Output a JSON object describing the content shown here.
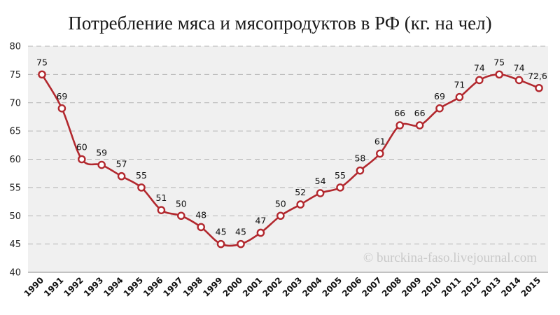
{
  "chart_data": {
    "type": "line",
    "title": "Потребление мяса и мясопродуктов в РФ (кг. на чел)",
    "xlabel": "",
    "ylabel": "",
    "ylim": [
      40,
      80
    ],
    "yticks": [
      "40",
      "45",
      "50",
      "55",
      "60",
      "65",
      "70",
      "75",
      "80"
    ],
    "grid": true,
    "categories": [
      "1990",
      "1991",
      "1992",
      "1993",
      "1994",
      "1995",
      "1996",
      "1997",
      "1998",
      "1999",
      "2000",
      "2001",
      "2002",
      "2003",
      "2004",
      "2005",
      "2006",
      "2007",
      "2008",
      "2009",
      "2010",
      "2011",
      "2012",
      "2013",
      "2014",
      "2015"
    ],
    "values": [
      75,
      69,
      60,
      59,
      57,
      55,
      51,
      50,
      48,
      45,
      45,
      47,
      50,
      52,
      54,
      55,
      58,
      61,
      66,
      66,
      69,
      71,
      74,
      75,
      74,
      72.6
    ],
    "data_labels": [
      "75",
      "69",
      "60",
      "59",
      "57",
      "55",
      "51",
      "50",
      "48",
      "45",
      "45",
      "47",
      "50",
      "52",
      "54",
      "55",
      "58",
      "61",
      "66",
      "66",
      "69",
      "71",
      "74",
      "75",
      "74",
      "72,6"
    ],
    "watermark": "© burckina-faso.livejournal.com",
    "colors": {
      "line": "#b2282e",
      "marker_fill": "#ffffff",
      "plot_bg": "#f0f0f0",
      "grid": "#b5b5b5"
    }
  }
}
